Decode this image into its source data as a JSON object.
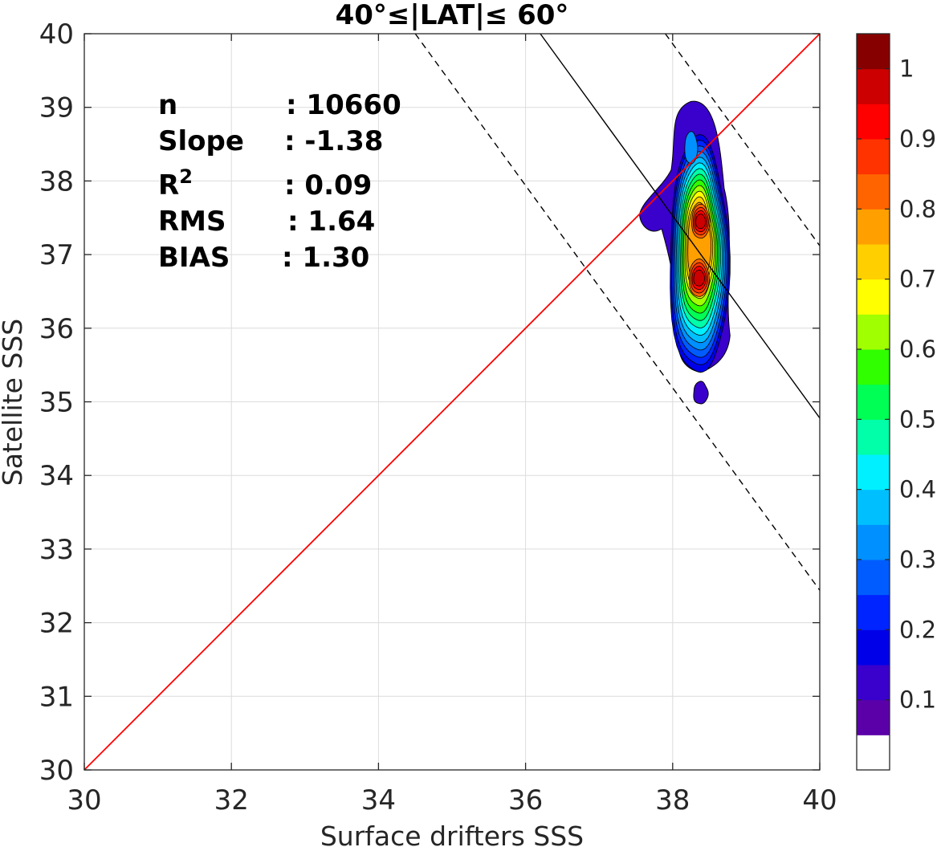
{
  "chart_data": {
    "type": "contour",
    "title": "40°≤|LAT|≤ 60°",
    "xlabel": "Surface drifters SSS",
    "ylabel": "Satellite SSS",
    "xlim": [
      30,
      40
    ],
    "ylim": [
      30,
      40
    ],
    "xticks": [
      "30",
      "32",
      "34",
      "36",
      "38",
      "40"
    ],
    "yticks": [
      "30",
      "31",
      "32",
      "33",
      "34",
      "35",
      "36",
      "37",
      "38",
      "39",
      "40"
    ],
    "grid": true,
    "colorbar": {
      "ticks": [
        "0.1",
        "0.2",
        "0.3",
        "0.4",
        "0.5",
        "0.6",
        "0.7",
        "0.8",
        "0.9",
        "1"
      ],
      "levels": [
        0.05,
        0.1,
        0.15,
        0.2,
        0.25,
        0.3,
        0.35,
        0.4,
        0.45,
        0.5,
        0.55,
        0.6,
        0.65,
        0.7,
        0.75,
        0.8,
        0.85,
        0.9,
        0.95,
        1.0
      ],
      "colors": [
        "#ffffff",
        "#5b00a8",
        "#3a00cc",
        "#0000e8",
        "#0024ff",
        "#005cff",
        "#0090ff",
        "#00bfff",
        "#00f0ff",
        "#00ffa8",
        "#00ff55",
        "#30ff00",
        "#a0ff00",
        "#ffff00",
        "#ffcf00",
        "#ff9f00",
        "#ff6400",
        "#ff3300",
        "#ff0000",
        "#cc0000",
        "#870000"
      ]
    },
    "stats": [
      {
        "label": "n",
        "value": ": 10660"
      },
      {
        "label": "Slope",
        "value": ": -1.38"
      },
      {
        "label": "R",
        "sup": "2",
        "value": ": 0.09"
      },
      {
        "label": "RMS",
        "value": ": 1.64"
      },
      {
        "label": "BIAS",
        "value": ": 1.30"
      }
    ],
    "lines": {
      "identity": {
        "x": [
          30,
          40
        ],
        "y": [
          30,
          40
        ],
        "color": "#ff0000"
      },
      "regression": {
        "x": [
          36.2,
          40
        ],
        "y": [
          40,
          34.78
        ],
        "color": "#000000"
      },
      "upper_band": {
        "x": [
          37.9,
          40
        ],
        "y": [
          40,
          37.12
        ],
        "color": "#000000",
        "dashed": true
      },
      "lower_band": {
        "x": [
          34.5,
          40
        ],
        "y": [
          40,
          32.44
        ],
        "color": "#000000",
        "dashed": true
      }
    },
    "density_core": {
      "x_center": 38.38,
      "y_peak_1": 36.68,
      "y_peak_2": 37.45,
      "x_range": [
        37.55,
        38.78
      ],
      "y_range": [
        35.0,
        39.08
      ]
    }
  }
}
